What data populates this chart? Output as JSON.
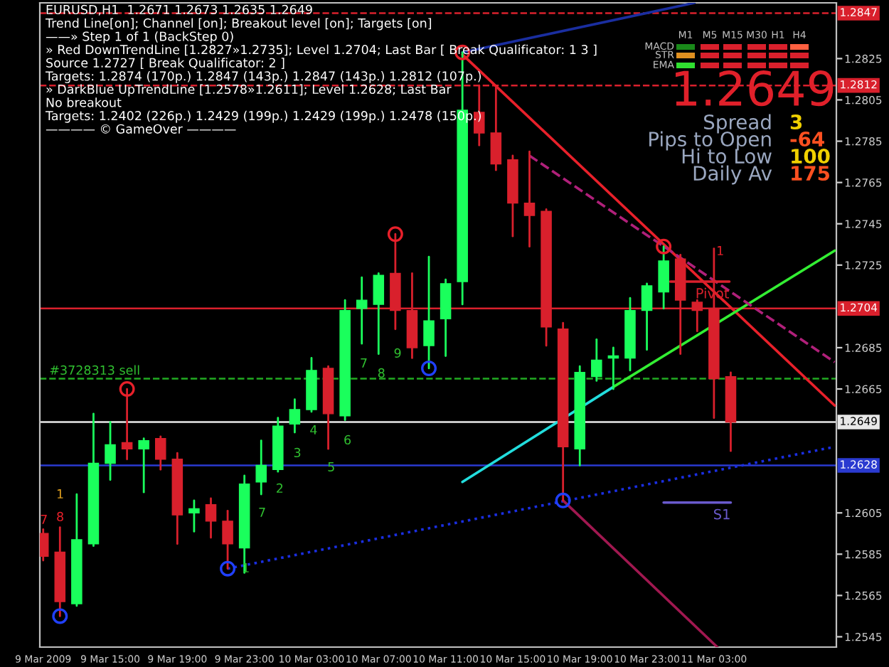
{
  "chart_data": {
    "type": "candlestick",
    "title": "EURUSD,H1  1.2671 1.2673 1.2635 1.2649",
    "x": [
      "2009-03-09T11:00",
      "2009-03-09T12:00",
      "2009-03-09T13:00",
      "2009-03-09T14:00",
      "2009-03-09T15:00",
      "2009-03-09T16:00",
      "2009-03-09T17:00",
      "2009-03-09T18:00",
      "2009-03-09T19:00",
      "2009-03-09T20:00",
      "2009-03-09T21:00",
      "2009-03-09T22:00",
      "2009-03-09T23:00",
      "2009-03-10T00:00",
      "2009-03-10T01:00",
      "2009-03-10T02:00",
      "2009-03-10T03:00",
      "2009-03-10T04:00",
      "2009-03-10T05:00",
      "2009-03-10T06:00",
      "2009-03-10T07:00",
      "2009-03-10T08:00",
      "2009-03-10T09:00",
      "2009-03-10T10:00",
      "2009-03-10T11:00",
      "2009-03-10T12:00",
      "2009-03-10T13:00",
      "2009-03-10T14:00",
      "2009-03-10T15:00",
      "2009-03-10T16:00",
      "2009-03-10T17:00",
      "2009-03-10T18:00",
      "2009-03-10T19:00",
      "2009-03-10T20:00",
      "2009-03-10T21:00",
      "2009-03-10T22:00",
      "2009-03-10T23:00",
      "2009-03-11T00:00",
      "2009-03-11T01:00",
      "2009-03-11T02:00",
      "2009-03-11T03:00",
      "2009-03-11T04:00"
    ],
    "ohlc": [
      [
        1.2595,
        1.2597,
        1.2582,
        1.2584
      ],
      [
        1.2586,
        1.2598,
        1.2555,
        1.2562
      ],
      [
        1.2561,
        1.2614,
        1.256,
        1.2592
      ],
      [
        1.259,
        1.2653,
        1.2589,
        1.2629
      ],
      [
        1.2629,
        1.2649,
        1.2621,
        1.2638
      ],
      [
        1.2639,
        1.2665,
        1.2631,
        1.2636
      ],
      [
        1.2636,
        1.2641,
        1.2615,
        1.264
      ],
      [
        1.2641,
        1.2642,
        1.2626,
        1.2631
      ],
      [
        1.2631,
        1.2634,
        1.259,
        1.2604
      ],
      [
        1.2605,
        1.2611,
        1.2596,
        1.2607
      ],
      [
        1.2609,
        1.2612,
        1.2593,
        1.2601
      ],
      [
        1.2601,
        1.2606,
        1.2578,
        1.259
      ],
      [
        1.2588,
        1.2623,
        1.2576,
        1.2619
      ],
      [
        1.262,
        1.264,
        1.2614,
        1.2628
      ],
      [
        1.2626,
        1.2651,
        1.2625,
        1.2647
      ],
      [
        1.2648,
        1.266,
        1.2644,
        1.2655
      ],
      [
        1.2655,
        1.268,
        1.2654,
        1.2674
      ],
      [
        1.2675,
        1.2676,
        1.2636,
        1.2653
      ],
      [
        1.2652,
        1.2708,
        1.265,
        1.2703
      ],
      [
        1.2704,
        1.2719,
        1.2687,
        1.2708
      ],
      [
        1.2706,
        1.2721,
        1.2682,
        1.272
      ],
      [
        1.2721,
        1.274,
        1.2694,
        1.2703
      ],
      [
        1.2703,
        1.2721,
        1.268,
        1.2685
      ],
      [
        1.2686,
        1.2729,
        1.2675,
        1.2698
      ],
      [
        1.2699,
        1.2718,
        1.2681,
        1.2716
      ],
      [
        1.2717,
        1.2828,
        1.2706,
        1.28
      ],
      [
        1.2799,
        1.2812,
        1.2783,
        1.2789
      ],
      [
        1.2789,
        1.2811,
        1.2771,
        1.2774
      ],
      [
        1.2776,
        1.2778,
        1.2739,
        1.2755
      ],
      [
        1.2755,
        1.278,
        1.2734,
        1.2749
      ],
      [
        1.2751,
        1.2752,
        1.2686,
        1.2695
      ],
      [
        1.2694,
        1.2697,
        1.2611,
        1.2637
      ],
      [
        1.2636,
        1.2676,
        1.2628,
        1.2673
      ],
      [
        1.2671,
        1.2689,
        1.2669,
        1.2679
      ],
      [
        1.268,
        1.2685,
        1.2665,
        1.2681
      ],
      [
        1.268,
        1.2709,
        1.2674,
        1.2703
      ],
      [
        1.2703,
        1.2716,
        1.2684,
        1.2715
      ],
      [
        1.2712,
        1.2734,
        1.2704,
        1.2727
      ],
      [
        1.2728,
        1.273,
        1.2682,
        1.2708
      ],
      [
        1.2707,
        1.2708,
        1.2693,
        1.2703
      ],
      [
        1.2704,
        1.2733,
        1.2651,
        1.267
      ],
      [
        1.2671,
        1.2673,
        1.2635,
        1.2649
      ]
    ],
    "colors": [
      "#d9202c",
      "#d9202c",
      "#1aff5c",
      "#1aff5c",
      "#1aff5c",
      "#d9202c",
      "#1aff5c",
      "#d9202c",
      "#d9202c",
      "#1aff5c",
      "#d9202c",
      "#d9202c",
      "#1aff5c",
      "#1aff5c",
      "#1aff5c",
      "#1aff5c",
      "#1aff5c",
      "#d9202c",
      "#1aff5c",
      "#1aff5c",
      "#1aff5c",
      "#d9202c",
      "#d9202c",
      "#1aff5c",
      "#1aff5c",
      "#1aff5c",
      "#d9202c",
      "#d9202c",
      "#d9202c",
      "#d9202c",
      "#d9202c",
      "#d9202c",
      "#1aff5c",
      "#1aff5c",
      "#1aff5c",
      "#1aff5c",
      "#1aff5c",
      "#1aff5c",
      "#d9202c",
      "#d9202c",
      "#d9202c",
      "#d9202c"
    ],
    "series": [
      {
        "type": "line",
        "color": "#e8202a",
        "x": [
          "2009-03-10T12:00",
          "2009-03-11T10:12"
        ],
        "values": [
          1.2827,
          1.2657
        ]
      },
      {
        "type": "line",
        "color": "#22dddd",
        "x": [
          "2009-03-10T12:00",
          "2009-03-10T21:00"
        ],
        "values": [
          1.262,
          1.2666
        ]
      },
      {
        "type": "line",
        "color": "#33ee33",
        "x": [
          "2009-03-10T21:00",
          "2009-03-11T10:12"
        ],
        "values": [
          1.2666,
          1.2732
        ]
      },
      {
        "type": "line",
        "color": "#1a2ee0",
        "line_style": "dotted",
        "x": [
          "2009-03-09T22:00",
          "2009-03-11T10:12"
        ],
        "values": [
          1.2578,
          1.2637
        ]
      },
      {
        "type": "line",
        "color": "#1a2ea0",
        "x": [
          "2009-03-10T12:00",
          "2009-03-11T01:50"
        ],
        "values": [
          1.2828,
          1.2852
        ]
      },
      {
        "type": "line",
        "color": "#b0207a",
        "line_style": "dashed",
        "x": [
          "2009-03-10T16:00",
          "2009-03-11T10:12"
        ],
        "values": [
          1.2778,
          1.2678
        ]
      },
      {
        "type": "line",
        "color": "#a01850",
        "x": [
          "2009-03-10T18:00",
          "2009-03-11T03:12"
        ],
        "values": [
          1.2611,
          1.254
        ]
      },
      {
        "type": "line",
        "name": "Pivot",
        "color": "#d9202c",
        "x": [
          "2009-03-11T00:24",
          "2009-03-11T03:55"
        ],
        "values": [
          1.2717,
          1.2717
        ]
      },
      {
        "type": "line",
        "name": "S1",
        "color": "#6a5acd",
        "x": [
          "2009-03-11T00:00",
          "2009-03-11T04:00"
        ],
        "values": [
          1.261,
          1.261
        ]
      },
      {
        "type": "scatter",
        "marker": "circle",
        "color": "#e8202a",
        "x": [
          "2009-03-09T16:00",
          "2009-03-10T08:00",
          "2009-03-10T12:00",
          "2009-03-11T00:00"
        ],
        "values": [
          1.2665,
          1.274,
          1.2828,
          1.2734
        ]
      },
      {
        "type": "scatter",
        "marker": "circle",
        "color": "#2040ff",
        "x": [
          "2009-03-09T12:00",
          "2009-03-09T22:00",
          "2009-03-10T10:00",
          "2009-03-10T18:00"
        ],
        "values": [
          1.2555,
          1.2578,
          1.2675,
          1.2611
        ]
      }
    ],
    "ref_lines": [
      {
        "axis": "y",
        "value": 1.2847,
        "label": "1.2847",
        "color": "#d9202c",
        "line_style": "dashed"
      },
      {
        "axis": "y",
        "value": 1.2812,
        "label": "1.2812",
        "color": "#d9202c",
        "line_style": "dashed"
      },
      {
        "axis": "y",
        "value": 1.2704,
        "label": "1.2704",
        "color": "#d9202c",
        "line_style": "solid"
      },
      {
        "axis": "y",
        "value": 1.267,
        "color": "#22aa22",
        "line_style": "dashed"
      },
      {
        "axis": "y",
        "value": 1.2649,
        "label": "1.2649",
        "color": "#e8e8e8",
        "line_style": "solid"
      },
      {
        "axis": "y",
        "value": 1.2628,
        "label": "1.2628",
        "color": "#2a3ad0",
        "line_style": "solid"
      }
    ],
    "annotations": [
      "Trend Line[on]; Channel [on]; Breakout level [on]; Targets [on]",
      "——» Step 1 of 1 (BackStep 0)",
      "» Red DownTrendLine [1.2827»1.2735]; Level 1.2704; Last Bar [ Break Qualificator: 1 3 ]",
      "Source 1.2727 [ Break Qualificator: 2 ]",
      "Targets: 1.2874 (170p.) 1.2847 (143p.) 1.2847 (143p.) 1.2812 (107p.)",
      "» DarkBlue UpTrendLine [1.2578»1.2611]; Level 1.2628; Last Bar",
      "No breakout",
      "Targets: 1.2402 (226p.) 1.2429 (199p.) 1.2429 (199p.) 1.2478 (150p.)",
      "———— © GameOver ————",
      "1.2649",
      "Spread",
      "3",
      "Pips to Open",
      "-64",
      "Hi to Low",
      "100",
      "Daily Av",
      "175",
      "M1",
      "M5",
      "M15",
      "M30",
      "H1",
      "H4",
      "MACD",
      "STR",
      "EMA",
      "#3728313 sell",
      "7",
      "8",
      "1",
      "1",
      "7",
      "2",
      "3",
      "4",
      "5",
      "6",
      "7",
      "8",
      "9",
      "1"
    ],
    "xlim": [
      "2009-03-09T10:48",
      "2009-03-11T10:18"
    ],
    "xticks": [
      {
        "value": "2009-03-09T11:00",
        "label": "9 Mar 2009"
      },
      {
        "value": "2009-03-09T15:00",
        "label": "9 Mar 15:00"
      },
      {
        "value": "2009-03-09T19:00",
        "label": "9 Mar 19:00"
      },
      {
        "value": "2009-03-09T23:00",
        "label": "9 Mar 23:00"
      },
      {
        "value": "2009-03-10T03:00",
        "label": "10 Mar 03:00"
      },
      {
        "value": "2009-03-10T07:00",
        "label": "10 Mar 07:00"
      },
      {
        "value": "2009-03-10T11:00",
        "label": "10 Mar 11:00"
      },
      {
        "value": "2009-03-10T15:00",
        "label": "10 Mar 15:00"
      },
      {
        "value": "2009-03-10T19:00",
        "label": "10 Mar 19:00"
      },
      {
        "value": "2009-03-10T23:00",
        "label": "10 Mar 23:00"
      },
      {
        "value": "2009-03-11T03:00",
        "label": "11 Mar 03:00"
      }
    ],
    "ylim": [
      1.254,
      1.2852
    ],
    "yticks": [
      1.2545,
      1.2565,
      1.2585,
      1.2605,
      1.2665,
      1.2685,
      1.2725,
      1.2745,
      1.2765,
      1.2785,
      1.2805,
      1.2825
    ],
    "grid": false
  }
}
